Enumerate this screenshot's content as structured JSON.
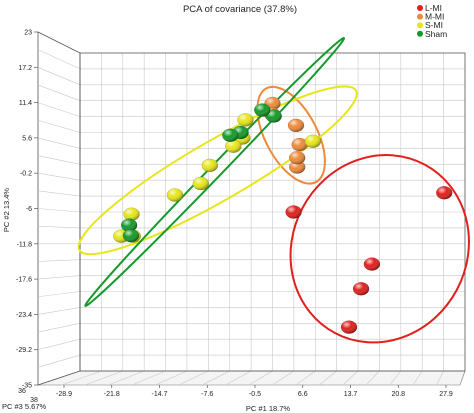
{
  "chart_data": {
    "type": "scatter",
    "title": "PCA of covariance (37.8%)",
    "ylabel": "PC #2 13.4%",
    "xlabel": "PC #1 18.7%",
    "zlabel": "PC #3 5.67%",
    "y_ticks": [
      "23",
      "17.2",
      "11.4",
      "5.6",
      "-0.2",
      "-6",
      "-11.8",
      "-17.6",
      "-23.4",
      "-29.2",
      "-35"
    ],
    "x_ticks": [
      "-28.9",
      "-21.8",
      "-14.7",
      "-7.6",
      "-0.5",
      "6.6",
      "13.7",
      "20.8",
      "27.9"
    ],
    "z_ticks": [
      "36",
      "38"
    ],
    "xlim": [
      -32.45,
      31.45
    ],
    "ylim": [
      -35,
      23
    ],
    "grid": true,
    "legend_position": "top-right",
    "series": [
      {
        "name": "L-MI",
        "color": "#e0201c",
        "points": [
          [
            28.0,
            -2.5
          ],
          [
            3.0,
            -6.0
          ],
          [
            16.0,
            -15.5
          ],
          [
            14.2,
            -20.0
          ],
          [
            12.2,
            -27.0
          ]
        ]
      },
      {
        "name": "M-MI",
        "color": "#ee8a3a",
        "points": [
          [
            -0.5,
            13.8
          ],
          [
            -0.6,
            11.9
          ],
          [
            3.4,
            9.8
          ],
          [
            4.0,
            6.3
          ],
          [
            3.6,
            2.2
          ],
          [
            3.6,
            3.9
          ]
        ]
      },
      {
        "name": "S-MI",
        "color": "#e6e619",
        "points": [
          [
            -5.0,
            10.8
          ],
          [
            -5.5,
            7.5
          ],
          [
            -7.0,
            6.0
          ],
          [
            6.2,
            6.9
          ],
          [
            -10.9,
            2.5
          ],
          [
            -12.4,
            -0.8
          ],
          [
            -16.7,
            -2.9
          ],
          [
            -23.9,
            -6.4
          ],
          [
            -25.6,
            -10.4
          ],
          [
            -23.7,
            -10.4
          ]
        ]
      },
      {
        "name": "Sham",
        "color": "#149a2a",
        "points": [
          [
            -0.3,
            11.5
          ],
          [
            -2.2,
            12.6
          ],
          [
            -5.8,
            8.5
          ],
          [
            -7.5,
            8.0
          ],
          [
            -24.3,
            -8.4
          ],
          [
            -24.0,
            -10.3
          ]
        ]
      }
    ],
    "ellipses": [
      {
        "group": "L-MI",
        "color": "#e0201c",
        "center": [
          17.3,
          -12.7
        ],
        "radii": [
          14.5,
          17.4
        ],
        "rotation_deg": 28
      },
      {
        "group": "M-MI",
        "color": "#ee8a3a",
        "center": [
          2.6,
          8.0
        ],
        "radii": [
          8.8,
          4.7
        ],
        "rotation_deg": 62
      },
      {
        "group": "S-MI",
        "color": "#e6e619",
        "center": [
          -9.6,
          1.6
        ],
        "radii": [
          26.5,
          5.4
        ],
        "rotation_deg": -30
      },
      {
        "group": "Sham",
        "color": "#149a2a",
        "center": [
          -10.1,
          1.3
        ],
        "radii": [
          30.9,
          1.1
        ],
        "rotation_deg": -46
      }
    ]
  }
}
